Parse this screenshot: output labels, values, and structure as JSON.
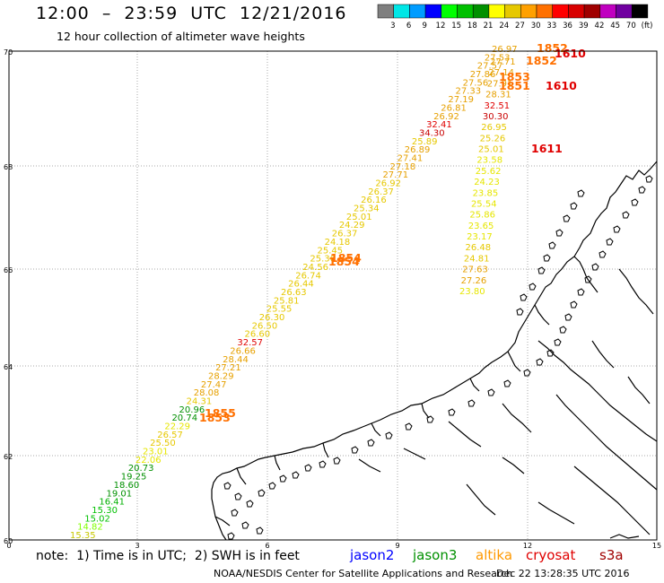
{
  "header": {
    "title": "12:00  –  23:59  UTC  12/21/2016",
    "subtitle": "12 hour collection of altimeter wave heights"
  },
  "colorbar": {
    "swatches": [
      "#7f7f7f",
      "#00e6e6",
      "#009cff",
      "#0000ff",
      "#00ff00",
      "#00c000",
      "#009000",
      "#ffff00",
      "#e6c800",
      "#ffa000",
      "#ff7000",
      "#ff0000",
      "#d80000",
      "#a00000",
      "#c000c0",
      "#7000a0",
      "#000000"
    ],
    "labels": [
      "3",
      "6",
      "9",
      "12",
      "15",
      "18",
      "21",
      "24",
      "27",
      "30",
      "33",
      "36",
      "39",
      "42",
      "45",
      "70",
      "(ft)"
    ]
  },
  "axes": {
    "y_ticks": [
      "70",
      "68",
      "66",
      "64",
      "62",
      "60"
    ],
    "x_ticks": [
      "0",
      "3",
      "6",
      "9",
      "12",
      "15"
    ]
  },
  "tracks": [
    {
      "points": [
        {
          "v": "15.35",
          "c": "#c8c800"
        },
        {
          "v": "14.82",
          "c": "#80ff00"
        },
        {
          "v": "15.02",
          "c": "#00c000"
        },
        {
          "v": "15.30",
          "c": "#00c000"
        },
        {
          "v": "16.41",
          "c": "#00b000"
        },
        {
          "v": "19.01",
          "c": "#009000"
        },
        {
          "v": "18.60",
          "c": "#009000"
        },
        {
          "v": "19.25",
          "c": "#009000"
        },
        {
          "v": "20.73",
          "c": "#009000"
        },
        {
          "v": "22.06",
          "c": "#e6e600"
        },
        {
          "v": "23.01",
          "c": "#e6e600"
        },
        {
          "v": "25.50",
          "c": "#e6c800"
        },
        {
          "v": "26.57",
          "c": "#e6c800"
        },
        {
          "v": "22.29",
          "c": "#e6e600"
        },
        {
          "v": "20.74",
          "c": "#009000"
        },
        {
          "v": "20.96",
          "c": "#009000"
        },
        {
          "v": "24.31",
          "c": "#e6c800"
        },
        {
          "v": "28.08",
          "c": "#e6a000"
        },
        {
          "v": "27.47",
          "c": "#e6a000"
        },
        {
          "v": "28.29",
          "c": "#e6a000"
        },
        {
          "v": "27.21",
          "c": "#e6a000"
        },
        {
          "v": "28.44",
          "c": "#e6a000"
        },
        {
          "v": "26.66",
          "c": "#e6a000"
        },
        {
          "v": "32.57",
          "c": "#e00000"
        },
        {
          "v": "26.60",
          "c": "#e6c800"
        },
        {
          "v": "26.50",
          "c": "#e6c800"
        },
        {
          "v": "26.30",
          "c": "#e6c800"
        },
        {
          "v": "25.55",
          "c": "#e6c800"
        },
        {
          "v": "25.81",
          "c": "#e6c800"
        },
        {
          "v": "26.63",
          "c": "#e6c800"
        },
        {
          "v": "26.44",
          "c": "#e6c800"
        },
        {
          "v": "26.74",
          "c": "#e6c800"
        },
        {
          "v": "24.56",
          "c": "#e6c800"
        },
        {
          "v": "25.36",
          "c": "#e6c800"
        },
        {
          "v": "25.45",
          "c": "#e6c800"
        },
        {
          "v": "24.18",
          "c": "#e6c800"
        },
        {
          "v": "26.37",
          "c": "#e6c800"
        },
        {
          "v": "24.29",
          "c": "#e6c800"
        },
        {
          "v": "25.01",
          "c": "#e6c800"
        },
        {
          "v": "25.34",
          "c": "#e6c800"
        },
        {
          "v": "26.16",
          "c": "#e6c800"
        },
        {
          "v": "26.37",
          "c": "#e6c800"
        },
        {
          "v": "26.92",
          "c": "#e6c800"
        },
        {
          "v": "27.71",
          "c": "#e6a000"
        },
        {
          "v": "27.18",
          "c": "#e6a000"
        },
        {
          "v": "27.41",
          "c": "#e6a000"
        },
        {
          "v": "26.89",
          "c": "#e6a000"
        },
        {
          "v": "25.89",
          "c": "#e6c800"
        },
        {
          "v": "34.30",
          "c": "#c80000"
        },
        {
          "v": "32.41",
          "c": "#e00000"
        },
        {
          "v": "26.92",
          "c": "#e6a000"
        },
        {
          "v": "26.81",
          "c": "#e6a000"
        },
        {
          "v": "27.19",
          "c": "#e6a000"
        },
        {
          "v": "27.33",
          "c": "#e6a000"
        },
        {
          "v": "27.56",
          "c": "#e6a000"
        },
        {
          "v": "27.86",
          "c": "#e6a000"
        },
        {
          "v": "27.57",
          "c": "#e6a000"
        },
        {
          "v": "27.53",
          "c": "#e6a000"
        },
        {
          "v": "26.97",
          "c": "#e6a000"
        }
      ]
    },
    {
      "points": [
        {
          "v": "27.71",
          "c": "#e6a000"
        },
        {
          "v": "27.14",
          "c": "#e6a000"
        },
        {
          "v": "27.91",
          "c": "#e6a000"
        },
        {
          "v": "28.31",
          "c": "#e6a000"
        },
        {
          "v": "32.51",
          "c": "#e00000"
        },
        {
          "v": "30.30",
          "c": "#c80000"
        },
        {
          "v": "26.95",
          "c": "#e6c800"
        },
        {
          "v": "25.26",
          "c": "#e6c800"
        },
        {
          "v": "25.01",
          "c": "#e6c800"
        },
        {
          "v": "23.58",
          "c": "#e6e600"
        },
        {
          "v": "25.62",
          "c": "#e6e600"
        },
        {
          "v": "24.23",
          "c": "#e6e600"
        },
        {
          "v": "23.85",
          "c": "#e6e600"
        },
        {
          "v": "25.54",
          "c": "#e6e600"
        },
        {
          "v": "25.86",
          "c": "#e6e600"
        },
        {
          "v": "23.65",
          "c": "#e6e600"
        },
        {
          "v": "23.17",
          "c": "#e6e600"
        },
        {
          "v": "26.48",
          "c": "#e6c800"
        },
        {
          "v": "24.81",
          "c": "#e6c800"
        },
        {
          "v": "27.63",
          "c": "#e6a000"
        },
        {
          "v": "27.26",
          "c": "#e6a000"
        },
        {
          "v": "23.80",
          "c": "#e6e600"
        }
      ]
    }
  ],
  "pass_times": [
    {
      "t": "1855",
      "c": "#ff7000"
    },
    {
      "t": "1853",
      "c": "#ff7000"
    },
    {
      "t": "1854",
      "c": "#ff7000"
    },
    {
      "t": "1854",
      "c": "#ff7000"
    },
    {
      "t": "1852",
      "c": "#ff7000"
    },
    {
      "t": "1852",
      "c": "#ff7000"
    },
    {
      "t": "1851",
      "c": "#ff7000"
    },
    {
      "t": "1853",
      "c": "#ff7000"
    },
    {
      "t": "1610",
      "c": "#e00000"
    },
    {
      "t": "1610",
      "c": "#e00000"
    },
    {
      "t": "1611",
      "c": "#e00000"
    }
  ],
  "footer": {
    "note": "note:  1) Time is in UTC;  2) SWH is in feet",
    "legend": [
      {
        "name": "jason2",
        "color": "#0000ff"
      },
      {
        "name": "jason3",
        "color": "#009000"
      },
      {
        "name": "altika",
        "color": "#ff9900"
      },
      {
        "name": "cryosat",
        "color": "#e00000"
      },
      {
        "name": "s3a",
        "color": "#a00000"
      }
    ],
    "credit": "NOAA/NESDIS Center for Satellite Applications and Research",
    "date": "Dec 22 13:28:35 UTC 2016"
  }
}
